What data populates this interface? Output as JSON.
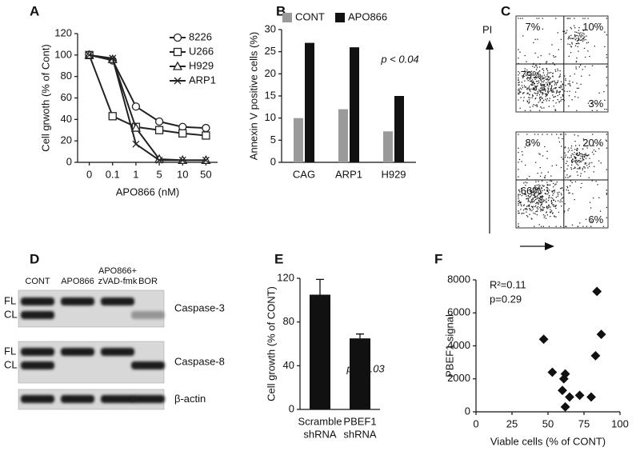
{
  "chart_data": [
    {
      "type": "line",
      "label": "A",
      "ylabel": "Cell grwoth (% of Cont)",
      "xlabel": "APO866 (nM)",
      "categories": [
        "0",
        "0.1",
        "1",
        "5",
        "10",
        "50"
      ],
      "ylim": [
        0,
        120
      ],
      "yticks": [
        0,
        20,
        40,
        60,
        80,
        100,
        120
      ],
      "series": [
        {
          "name": "8226",
          "color": "#222222",
          "marker": "circle",
          "values": [
            100,
            95,
            52,
            38,
            33,
            32
          ]
        },
        {
          "name": "U266",
          "color": "#222222",
          "marker": "square",
          "values": [
            100,
            43,
            33,
            30,
            27,
            25
          ]
        },
        {
          "name": "H929",
          "color": "#222222",
          "marker": "triangle",
          "values": [
            100,
            96,
            32,
            3,
            2,
            2
          ]
        },
        {
          "name": "ARP1",
          "color": "#222222",
          "marker": "x",
          "values": [
            100,
            97,
            17,
            2,
            2,
            2
          ]
        }
      ]
    },
    {
      "type": "bar",
      "label": "B",
      "ylabel": "Annexin V positive cells (%)",
      "annotation": "p < 0.04",
      "categories": [
        "CAG",
        "ARP1",
        "H929"
      ],
      "ylim": [
        0,
        30
      ],
      "yticks": [
        0,
        5,
        10,
        15,
        20,
        25,
        30
      ],
      "series": [
        {
          "name": "CONT",
          "color": "#9a9a9a",
          "values": [
            10,
            12,
            7
          ]
        },
        {
          "name": "APO866",
          "color": "#111111",
          "values": [
            27,
            26,
            15
          ]
        }
      ]
    },
    {
      "type": "bar",
      "label": "E",
      "ylabel": "Cell growth (% of CONT)",
      "annotation": "p < 0.03",
      "categories": [
        [
          "Scramble",
          "shRNA"
        ],
        [
          "PBEF1",
          "shRNA"
        ]
      ],
      "ylim": [
        0,
        120
      ],
      "yticks": [
        0,
        40,
        80,
        120
      ],
      "series": [
        {
          "color": "#111111",
          "values": [
            105,
            65
          ],
          "errors": [
            14,
            4
          ]
        }
      ]
    },
    {
      "type": "scatter",
      "label": "F",
      "ylabel": "PBEF1 signal",
      "xlabel": "Viable cells (% of CONT)",
      "annotations": [
        "R²=0.11",
        "p=0.29"
      ],
      "xlim": [
        0,
        100
      ],
      "xticks": [
        0,
        25,
        50,
        75,
        100
      ],
      "ylim": [
        0,
        8000
      ],
      "yticks": [
        0,
        2000,
        4000,
        6000,
        8000
      ],
      "color": "#111111",
      "x": [
        47,
        53,
        61,
        62,
        60,
        65,
        62,
        72,
        80,
        83,
        84,
        87
      ],
      "values": [
        4400,
        2400,
        2000,
        2300,
        1300,
        900,
        300,
        1000,
        900,
        3400,
        7300,
        4700
      ]
    }
  ],
  "flow_panel": {
    "label": "C",
    "axis_label": "PI",
    "plots": [
      {
        "quadrants": [
          "7%",
          "10%",
          "79%",
          "3%"
        ]
      },
      {
        "quadrants": [
          "8%",
          "20%",
          "66%",
          "6%"
        ]
      }
    ]
  },
  "blot_panel": {
    "label": "D",
    "lanes": [
      [
        "CONT"
      ],
      [
        "APO866"
      ],
      [
        "APO866+",
        "zVAD-fmk"
      ],
      [
        "BOR"
      ]
    ],
    "blots": [
      {
        "name": "Caspase-3",
        "bands": [
          "FL",
          "CL"
        ]
      },
      {
        "name": "Caspase-8",
        "bands": [
          "FL",
          "CL"
        ]
      },
      {
        "name": "β-actin",
        "bands": []
      }
    ]
  }
}
